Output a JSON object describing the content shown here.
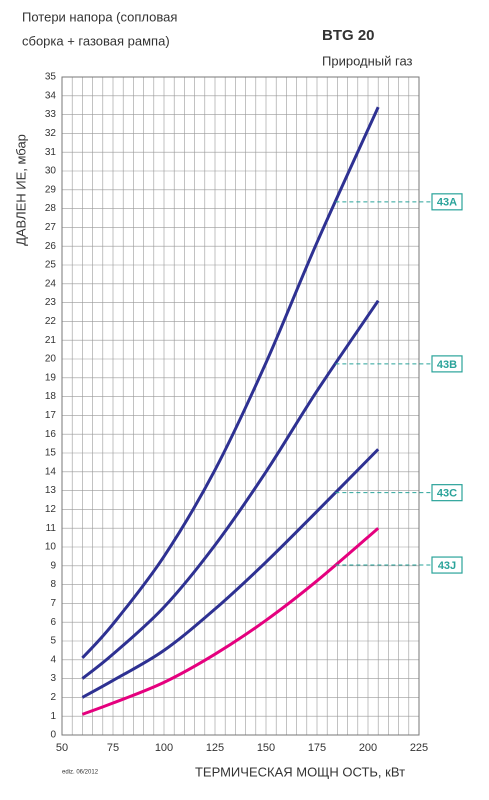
{
  "chart_data": {
    "type": "line",
    "annotation": [
      "Потери напора (сопловая",
      "сборка + газовая рампа)"
    ],
    "title": "BTG 20",
    "subtitle": "Природный газ",
    "y_label": "ДАВЛЕН ИЕ, мбар",
    "x_label": "ТЕРМИЧЕСКАЯ МОЩН ОСТЬ, кВт",
    "footnote": "ediz. 06/2012",
    "x": [
      60,
      75,
      100,
      125,
      150,
      175,
      205
    ],
    "series": [
      {
        "name": "43A",
        "color": "#2e3192",
        "values": [
          4.1,
          5.9,
          9.5,
          14.1,
          19.8,
          26.2,
          33.4
        ]
      },
      {
        "name": "43B",
        "color": "#2e3192",
        "values": [
          3.0,
          4.3,
          6.8,
          10.1,
          14.0,
          18.3,
          23.1
        ]
      },
      {
        "name": "43C",
        "color": "#2e3192",
        "values": [
          2.0,
          2.9,
          4.5,
          6.7,
          9.2,
          11.9,
          15.2
        ]
      },
      {
        "name": "43J",
        "color": "#e5007e",
        "values": [
          1.1,
          1.7,
          2.8,
          4.3,
          6.1,
          8.2,
          11.0
        ]
      }
    ],
    "label_color": "#2aa39a",
    "xlim": [
      50,
      225
    ],
    "xticks": [
      50,
      75,
      100,
      125,
      150,
      175,
      200,
      225
    ],
    "ylim": [
      0,
      35
    ],
    "yticks": [
      0,
      1,
      2,
      3,
      4,
      5,
      6,
      7,
      8,
      9,
      10,
      11,
      12,
      13,
      14,
      15,
      16,
      17,
      18,
      19,
      20,
      21,
      22,
      23,
      24,
      25,
      26,
      27,
      28,
      29,
      30,
      31,
      32,
      33,
      34,
      35
    ],
    "grid": true
  }
}
